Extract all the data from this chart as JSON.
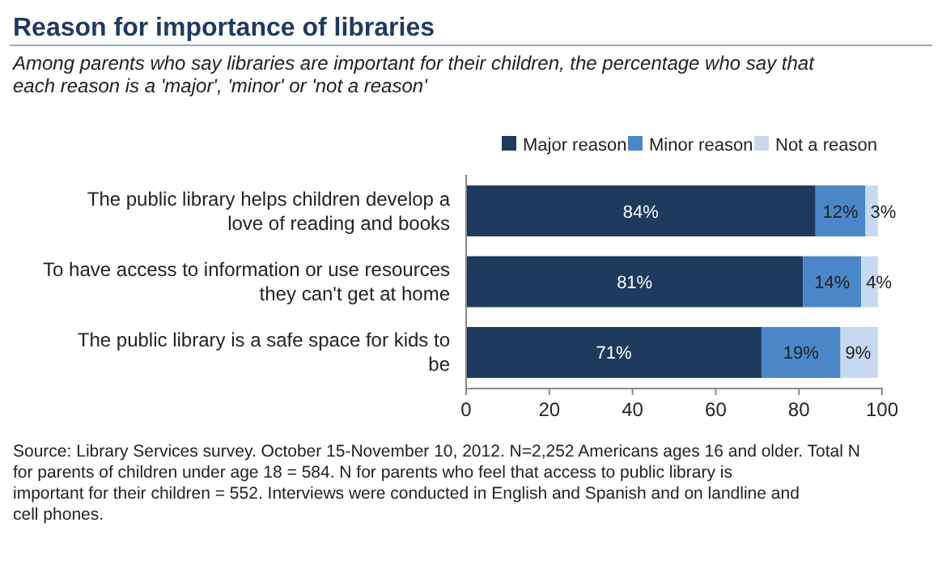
{
  "chart_data": {
    "type": "bar",
    "orientation": "horizontal",
    "stacked": true,
    "title": "Reason for importance of libraries",
    "subtitle": "Among parents who say libraries are important for their children, the percentage who say that each reason is a 'major', 'minor' or 'not a reason'",
    "categories": [
      "The public library helps children develop a love of reading and books",
      "To have access to information or use resources they can't get at home",
      "The public library is a safe space for kids to be"
    ],
    "series": [
      {
        "name": "Major reason",
        "color": "#1f3a5f",
        "values": [
          84,
          81,
          71
        ],
        "value_labels": [
          "84%",
          "81%",
          "71%"
        ]
      },
      {
        "name": "Minor reason",
        "color": "#4a86c8",
        "values": [
          12,
          14,
          19
        ],
        "value_labels": [
          "12%",
          "14%",
          "19%"
        ]
      },
      {
        "name": "Not a reason",
        "color": "#c6d9f0",
        "values": [
          3,
          4,
          9
        ],
        "value_labels": [
          "3%",
          "4%",
          "9%"
        ]
      }
    ],
    "xlim": [
      0,
      100
    ],
    "xticks": [
      0,
      20,
      40,
      60,
      80,
      100
    ],
    "legend": "top",
    "grid": false,
    "annotations": [
      "Source: Library Services survey. October 15-November 10, 2012. N=2,252 Americans ages 16 and older. Total N for parents of children under age 18 = 584. N for parents who feel that access to public library is important for their children = 552. Interviews were conducted in English and Spanish and on landline and cell phones."
    ]
  }
}
